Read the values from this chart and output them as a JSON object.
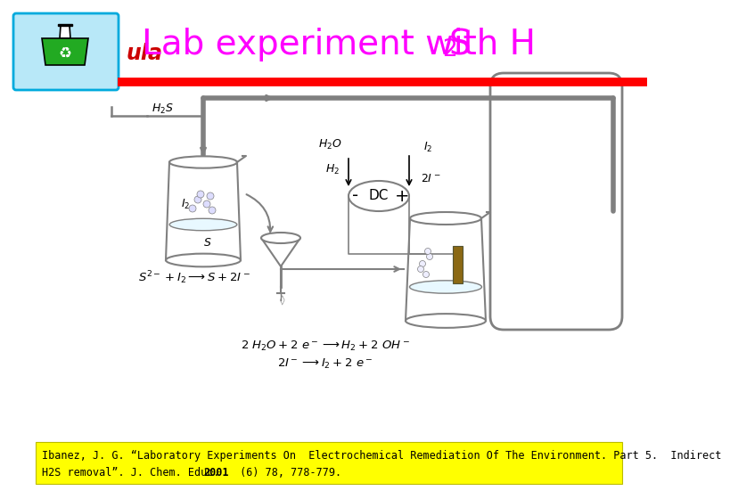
{
  "title_color": "#FF00FF",
  "title_fontsize": 28,
  "logo_text": "ula",
  "logo_color": "#CC0000",
  "red_line_color": "#FF0000",
  "bg_color": "#FFFFFF",
  "citation_bg": "#FFFF00",
  "citation_line1": "Ibanez, J. G. “Laboratory Experiments On  Electrochemical Remediation Of The Environment. Part 5.  Indirect",
  "citation_line2a": "H2S removal”. J. Chem. Educ. ",
  "citation_line2b": "2001",
  "citation_line2c": " (6) 78, 778-779.",
  "citation_fontsize": 8.5,
  "eq1": "$2\\ H_2O + 2\\ e^- \\longrightarrow H_2 + 2\\ OH^-$",
  "eq2": "$2I^- \\longrightarrow I_2 + 2\\ e^-$",
  "eq_reaction": "$S^{2-} + I_2 \\longrightarrow S + 2I^-$"
}
